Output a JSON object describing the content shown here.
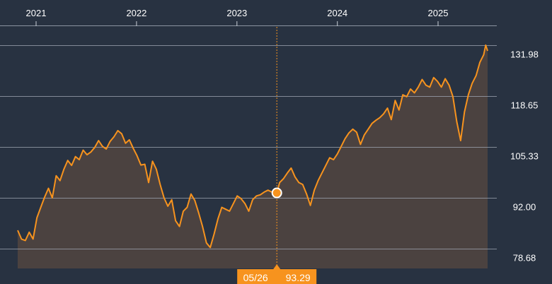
{
  "chart_data": {
    "type": "area",
    "x_tick_labels": [
      "2021",
      "2022",
      "2023",
      "2024",
      "2025"
    ],
    "x_tick_dates": [
      "2021-01-01",
      "2022-01-01",
      "2023-01-01",
      "2024-01-01",
      "2025-01-01"
    ],
    "y_tick_labels": [
      "131.98",
      "118.65",
      "105.33",
      "92.00",
      "78.68"
    ],
    "y_tick_values": [
      131.98,
      118.65,
      105.33,
      92.0,
      78.68
    ],
    "ylim": [
      73.5,
      137.7
    ],
    "xlim": [
      "2020-10-25",
      "2025-06-30"
    ],
    "grid": true,
    "colors": {
      "line": "#f7931e",
      "area": "#4b4240",
      "background": "#283241",
      "grid": "#a0a8b4",
      "text": "#ffffff",
      "plot_bg": "#283241"
    },
    "crosshair": {
      "date": "2023-05-26",
      "date_label": "05/26",
      "value": 93.29,
      "value_label": "93.29"
    },
    "series": [
      {
        "points": [
          [
            "2020-10-26",
            83.5
          ],
          [
            "2020-11-09",
            81.2
          ],
          [
            "2020-11-23",
            80.8
          ],
          [
            "2020-12-07",
            83.0
          ],
          [
            "2020-12-21",
            81.2
          ],
          [
            "2021-01-04",
            86.8
          ],
          [
            "2021-01-18",
            89.5
          ],
          [
            "2021-02-01",
            92.2
          ],
          [
            "2021-02-15",
            94.5
          ],
          [
            "2021-03-01",
            92.0
          ],
          [
            "2021-03-15",
            97.8
          ],
          [
            "2021-03-29",
            96.5
          ],
          [
            "2021-04-12",
            99.5
          ],
          [
            "2021-04-26",
            101.8
          ],
          [
            "2021-05-10",
            100.5
          ],
          [
            "2021-05-24",
            102.8
          ],
          [
            "2021-06-07",
            102.0
          ],
          [
            "2021-06-21",
            104.5
          ],
          [
            "2021-07-05",
            103.3
          ],
          [
            "2021-07-19",
            104.0
          ],
          [
            "2021-08-02",
            105.2
          ],
          [
            "2021-08-16",
            107.0
          ],
          [
            "2021-08-30",
            105.5
          ],
          [
            "2021-09-13",
            104.8
          ],
          [
            "2021-09-27",
            106.8
          ],
          [
            "2021-10-11",
            108.0
          ],
          [
            "2021-10-25",
            109.6
          ],
          [
            "2021-11-08",
            108.8
          ],
          [
            "2021-11-22",
            106.3
          ],
          [
            "2021-12-06",
            107.2
          ],
          [
            "2021-12-20",
            105.0
          ],
          [
            "2022-01-03",
            103.0
          ],
          [
            "2022-01-17",
            100.6
          ],
          [
            "2022-01-31",
            100.8
          ],
          [
            "2022-02-14",
            96.0
          ],
          [
            "2022-02-28",
            101.6
          ],
          [
            "2022-03-14",
            99.5
          ],
          [
            "2022-03-28",
            95.5
          ],
          [
            "2022-04-11",
            92.0
          ],
          [
            "2022-04-25",
            89.8
          ],
          [
            "2022-05-09",
            91.5
          ],
          [
            "2022-05-23",
            86.0
          ],
          [
            "2022-06-06",
            84.5
          ],
          [
            "2022-06-20",
            88.5
          ],
          [
            "2022-07-04",
            89.5
          ],
          [
            "2022-07-18",
            93.0
          ],
          [
            "2022-08-01",
            91.3
          ],
          [
            "2022-08-15",
            88.0
          ],
          [
            "2022-08-29",
            84.5
          ],
          [
            "2022-09-12",
            80.2
          ],
          [
            "2022-09-26",
            79.0
          ],
          [
            "2022-10-10",
            82.5
          ],
          [
            "2022-10-24",
            86.5
          ],
          [
            "2022-11-07",
            89.5
          ],
          [
            "2022-11-21",
            89.0
          ],
          [
            "2022-12-05",
            88.5
          ],
          [
            "2022-12-19",
            90.5
          ],
          [
            "2023-01-02",
            92.5
          ],
          [
            "2023-01-16",
            91.8
          ],
          [
            "2023-01-30",
            90.5
          ],
          [
            "2023-02-13",
            88.5
          ],
          [
            "2023-02-27",
            91.5
          ],
          [
            "2023-03-13",
            92.5
          ],
          [
            "2023-03-27",
            92.8
          ],
          [
            "2023-04-10",
            93.5
          ],
          [
            "2023-04-24",
            94.0
          ],
          [
            "2023-05-08",
            93.5
          ],
          [
            "2023-05-26",
            93.29
          ],
          [
            "2023-06-05",
            96.0
          ],
          [
            "2023-06-19",
            97.0
          ],
          [
            "2023-07-03",
            98.5
          ],
          [
            "2023-07-17",
            99.8
          ],
          [
            "2023-07-31",
            97.5
          ],
          [
            "2023-08-14",
            96.0
          ],
          [
            "2023-08-28",
            95.5
          ],
          [
            "2023-09-11",
            93.0
          ],
          [
            "2023-09-25",
            90.0
          ],
          [
            "2023-10-09",
            94.0
          ],
          [
            "2023-10-23",
            96.5
          ],
          [
            "2023-11-06",
            98.5
          ],
          [
            "2023-11-20",
            100.5
          ],
          [
            "2023-12-04",
            102.5
          ],
          [
            "2023-12-18",
            102.0
          ],
          [
            "2024-01-01",
            103.5
          ],
          [
            "2024-01-15",
            105.5
          ],
          [
            "2024-01-29",
            107.5
          ],
          [
            "2024-02-12",
            109.0
          ],
          [
            "2024-02-26",
            110.0
          ],
          [
            "2024-03-11",
            109.2
          ],
          [
            "2024-03-25",
            106.0
          ],
          [
            "2024-04-08",
            108.5
          ],
          [
            "2024-04-22",
            110.0
          ],
          [
            "2024-05-06",
            111.5
          ],
          [
            "2024-05-20",
            112.3
          ],
          [
            "2024-06-03",
            113.0
          ],
          [
            "2024-06-17",
            114.0
          ],
          [
            "2024-07-01",
            115.5
          ],
          [
            "2024-07-15",
            112.5
          ],
          [
            "2024-07-29",
            117.5
          ],
          [
            "2024-08-12",
            115.0
          ],
          [
            "2024-08-26",
            119.0
          ],
          [
            "2024-09-09",
            118.5
          ],
          [
            "2024-09-23",
            120.5
          ],
          [
            "2024-10-07",
            119.5
          ],
          [
            "2024-10-21",
            121.0
          ],
          [
            "2024-11-04",
            123.0
          ],
          [
            "2024-11-18",
            121.5
          ],
          [
            "2024-12-02",
            121.0
          ],
          [
            "2024-12-16",
            123.5
          ],
          [
            "2024-12-30",
            122.5
          ],
          [
            "2025-01-13",
            121.0
          ],
          [
            "2025-01-27",
            123.2
          ],
          [
            "2025-02-10",
            121.5
          ],
          [
            "2025-02-24",
            118.5
          ],
          [
            "2025-03-10",
            112.0
          ],
          [
            "2025-03-24",
            107.0
          ],
          [
            "2025-04-07",
            114.5
          ],
          [
            "2025-04-21",
            119.0
          ],
          [
            "2025-05-05",
            122.0
          ],
          [
            "2025-05-19",
            124.0
          ],
          [
            "2025-06-02",
            127.5
          ],
          [
            "2025-06-16",
            129.5
          ],
          [
            "2025-06-23",
            132.0
          ],
          [
            "2025-06-30",
            130.5
          ]
        ]
      }
    ]
  }
}
